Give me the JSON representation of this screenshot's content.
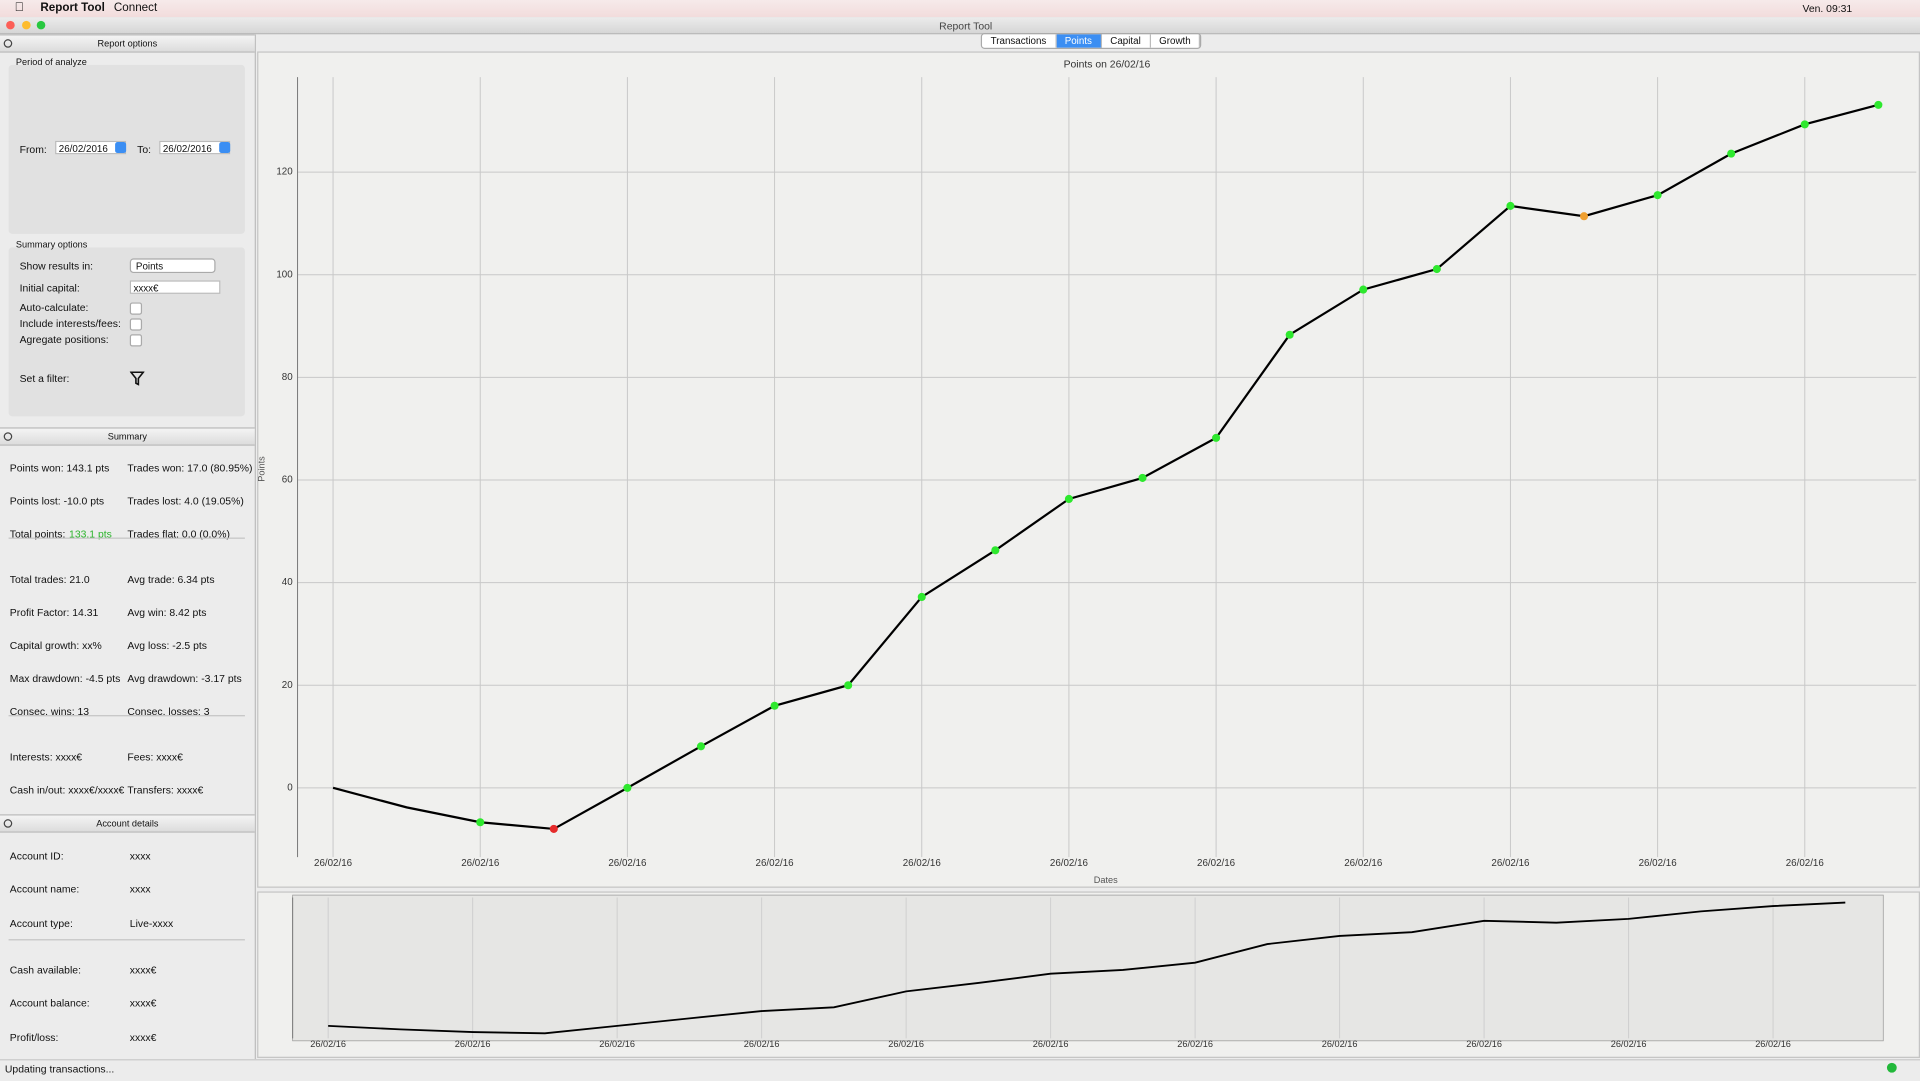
{
  "menubar": {
    "app": "Report Tool",
    "menu": "Connect",
    "clock": "Ven. 09:31"
  },
  "window_title": "Report Tool",
  "tabs": [
    "Transactions",
    "Points",
    "Capital",
    "Growth"
  ],
  "report_options": {
    "title": "Report options",
    "period_title": "Period of analyze",
    "from_label": "From:",
    "from": "26/02/2016",
    "to_label": "To:",
    "to": "26/02/2016",
    "summary_options_title": "Summary options",
    "show_results_label": "Show results in:",
    "show_results": "Points",
    "initial_capital_label": "Initial capital:",
    "initial_capital": "xxxx€",
    "checkboxes": [
      "Auto-calculate:",
      "Include interests/fees:",
      "Agregate positions:"
    ],
    "filter_label": "Set a filter:"
  },
  "summary": {
    "title": "Summary",
    "groups": [
      [
        [
          "Points won: 143.1 pts",
          "Trades won: 17.0 (80.95%)"
        ],
        [
          "Points lost: -10.0 pts",
          "Trades lost: 4.0 (19.05%)"
        ],
        [
          {
            "label": "Total points:",
            "value": "133.1 pts"
          },
          "Trades flat: 0.0 (0.0%)"
        ]
      ],
      [
        [
          "Total trades: 21.0",
          "Avg trade: 6.34 pts"
        ],
        [
          "Profit Factor: 14.31",
          "Avg win: 8.42 pts"
        ],
        [
          "Capital growth: xx%",
          "Avg loss: -2.5 pts"
        ],
        [
          "Max drawdown: -4.5 pts",
          "Avg drawdown: -3.17 pts"
        ],
        [
          "Consec. wins: 13",
          "Consec. losses: 3"
        ]
      ],
      [
        [
          "Interests: xxxx€",
          "Fees: xxxx€"
        ],
        [
          "Cash in/out: xxxx€/xxxx€",
          "Transfers: xxxx€"
        ]
      ]
    ]
  },
  "account": {
    "title": "Account details",
    "groups": [
      [
        [
          "Account ID:",
          "xxxx"
        ],
        [
          "Account name:",
          "xxxx"
        ],
        [
          "Account type:",
          "Live-xxxx"
        ]
      ],
      [
        [
          "Cash available:",
          "xxxx€"
        ],
        [
          "Account balance:",
          "xxxx€"
        ],
        [
          "Profit/loss:",
          "xxxx€"
        ]
      ]
    ]
  },
  "status": "Updating transactions...",
  "chart_data": {
    "type": "line",
    "title": "Points on 26/02/16",
    "y_label": "Points",
    "x_label": "Dates",
    "categories": [
      "26/02/16",
      null,
      "26/02/16",
      null,
      "26/02/16",
      null,
      "26/02/16",
      null,
      "26/02/16",
      null,
      "26/02/16",
      null,
      "26/02/16",
      null,
      "26/02/16",
      null,
      "26/02/16",
      null,
      "26/02/16",
      null,
      "26/02/16",
      null
    ],
    "values": [
      0,
      -3.8,
      -6.7,
      -8,
      0,
      8.1,
      16,
      20,
      37.2,
      46.3,
      56.3,
      60.4,
      68.2,
      88.3,
      97.1,
      101.1,
      113.4,
      111.4,
      115.5,
      123.6,
      129.3,
      133.1
    ],
    "marker_colors": [
      null,
      null,
      "#2ee82e",
      "#e52b2b",
      "#2ee82e",
      "#2ee82e",
      "#2ee82e",
      "#2ee82e",
      "#2ee82e",
      "#2ee82e",
      "#2ee82e",
      "#2ee82e",
      "#2ee82e",
      "#2ee82e",
      "#2ee82e",
      "#2ee82e",
      "#2ee82e",
      "#f0a030",
      "#2ee82e",
      "#2ee82e",
      "#2ee82e",
      "#2ee82e"
    ],
    "color": "#000000",
    "ylim": [
      -13.5,
      138.5
    ],
    "yticks": [
      0,
      20,
      40,
      60,
      80,
      100,
      120
    ],
    "grid": true
  }
}
